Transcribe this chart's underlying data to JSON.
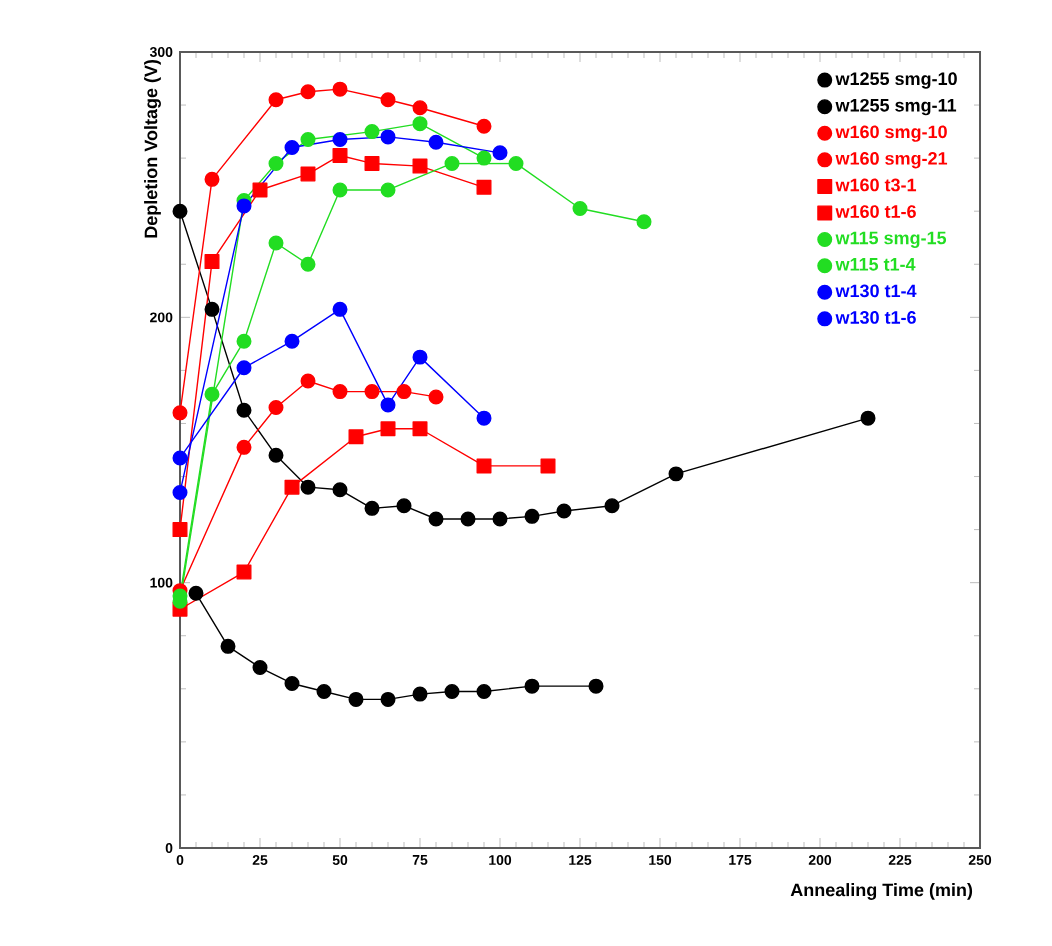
{
  "chart_data": {
    "type": "line",
    "xlabel": "Annealing Time (min)",
    "ylabel": "Depletion Voltage (V)",
    "xlim": [
      0,
      250
    ],
    "ylim": [
      0,
      300
    ],
    "xticks": [
      0,
      25,
      50,
      75,
      100,
      125,
      150,
      175,
      200,
      225,
      250
    ],
    "yticks": [
      0,
      100,
      200,
      300
    ],
    "legend": "top right",
    "marker": "circle",
    "line_style": "solid",
    "series": [
      {
        "name": "w1255 smg-10",
        "color": "#000000",
        "x": [
          5,
          15,
          25,
          35,
          45,
          55,
          65,
          75,
          85,
          95,
          110,
          130
        ],
        "values": [
          96,
          76,
          68,
          62,
          59,
          56,
          56,
          58,
          59,
          59,
          61,
          61
        ]
      },
      {
        "name": "w1255 smg-11",
        "color": "#000000",
        "x": [
          0,
          10,
          20,
          30,
          40,
          50,
          60,
          70,
          80,
          90,
          100,
          110,
          120,
          135,
          155,
          215
        ],
        "values": [
          240,
          203,
          165,
          148,
          136,
          135,
          128,
          129,
          124,
          124,
          124,
          125,
          127,
          129,
          141,
          162
        ]
      },
      {
        "name": "w160 smg-10",
        "color": "#ff0000",
        "x": [
          0,
          10,
          30,
          40,
          50,
          65,
          75,
          95
        ],
        "values": [
          164,
          252,
          282,
          285,
          286,
          282,
          279,
          272
        ]
      },
      {
        "name": "w160 smg-21",
        "color": "#ff0000",
        "x": [
          0,
          20,
          30,
          40,
          50,
          60,
          70,
          80
        ],
        "values": [
          97,
          151,
          166,
          176,
          172,
          172,
          172,
          170
        ]
      },
      {
        "name": "w160 t3-1",
        "color": "#ff0000",
        "marker": "square",
        "x": [
          0,
          10,
          25,
          40,
          50,
          60,
          75,
          95
        ],
        "values": [
          120,
          221,
          248,
          254,
          261,
          258,
          257,
          249
        ]
      },
      {
        "name": "w160 t1-6",
        "color": "#ff0000",
        "marker": "square",
        "x": [
          0,
          20,
          35,
          55,
          65,
          75,
          95,
          115
        ],
        "values": [
          90,
          104,
          136,
          155,
          158,
          158,
          144,
          144
        ]
      },
      {
        "name": "w115 smg-15",
        "color": "#22dd22",
        "x": [
          0,
          10,
          20,
          30,
          40,
          50,
          65,
          85,
          105,
          125,
          145
        ],
        "values": [
          95,
          171,
          191,
          228,
          220,
          248,
          248,
          258,
          258,
          241,
          236
        ]
      },
      {
        "name": "w115 t1-4",
        "color": "#22dd22",
        "x": [
          0,
          20,
          30,
          40,
          60,
          75,
          95
        ],
        "values": [
          93,
          244,
          258,
          267,
          270,
          273,
          260
        ]
      },
      {
        "name": "w130 t1-4",
        "color": "#0000ff",
        "x": [
          0,
          20,
          35,
          50,
          65,
          80,
          100
        ],
        "values": [
          134,
          242,
          264,
          267,
          268,
          266,
          262
        ]
      },
      {
        "name": "w130 t1-6",
        "color": "#0000ff",
        "x": [
          0,
          20,
          35,
          50,
          65,
          75,
          95
        ],
        "values": [
          147,
          181,
          191,
          203,
          167,
          185,
          162
        ]
      }
    ]
  }
}
